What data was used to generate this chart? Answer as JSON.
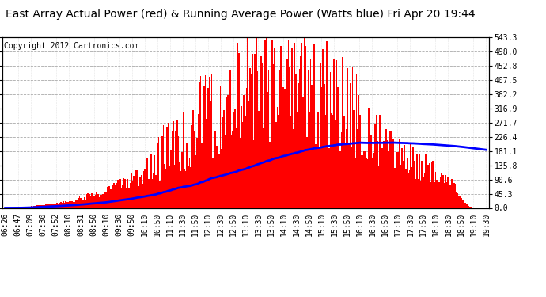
{
  "title": "East Array Actual Power (red) & Running Average Power (Watts blue) Fri Apr 20 19:44",
  "copyright": "Copyright 2012 Cartronics.com",
  "ylim": [
    0.0,
    543.3
  ],
  "yticks": [
    0.0,
    45.3,
    90.6,
    135.8,
    181.1,
    226.4,
    271.7,
    316.9,
    362.2,
    407.5,
    452.8,
    498.0,
    543.3
  ],
  "x_labels": [
    "06:26",
    "06:47",
    "07:09",
    "07:30",
    "07:52",
    "08:10",
    "08:31",
    "08:50",
    "09:10",
    "09:30",
    "09:50",
    "10:10",
    "10:50",
    "11:10",
    "11:30",
    "11:50",
    "12:10",
    "12:30",
    "12:50",
    "13:10",
    "13:30",
    "13:50",
    "14:10",
    "14:30",
    "14:50",
    "15:10",
    "15:30",
    "15:50",
    "16:10",
    "16:30",
    "16:50",
    "17:10",
    "17:30",
    "17:50",
    "18:10",
    "18:30",
    "18:50",
    "19:10",
    "19:30"
  ],
  "bg_color": "#ffffff",
  "bar_color": "#ff0000",
  "line_color": "#0000ff",
  "grid_color_major": "#aaaaaa",
  "grid_color_minor": "#cccccc",
  "title_fontsize": 10,
  "tick_fontsize": 7,
  "copyright_fontsize": 7
}
